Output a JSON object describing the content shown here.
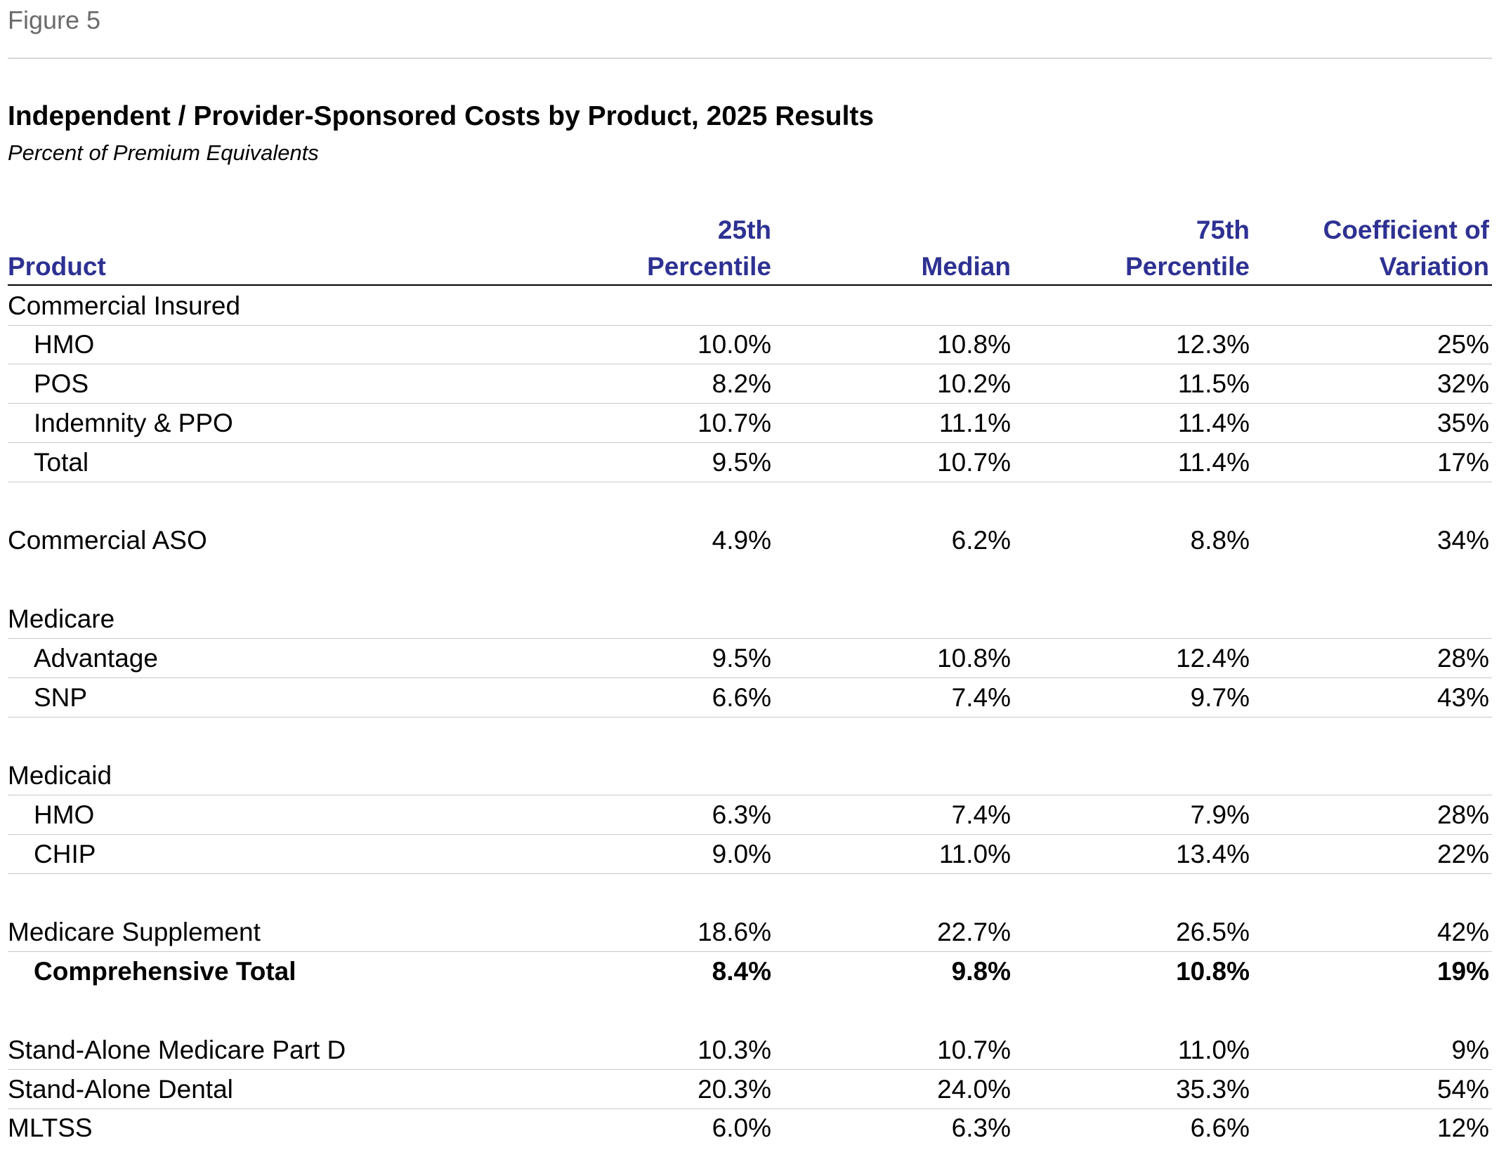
{
  "header": {
    "figure": "Figure 5",
    "title": "Independent / Provider-Sponsored Costs by Product, 2025 Results",
    "subtitle": "Percent of Premium Equivalents"
  },
  "table": {
    "columns": [
      [
        "Product"
      ],
      [
        "25th",
        "Percentile"
      ],
      [
        "Median"
      ],
      [
        "75th",
        "Percentile"
      ],
      [
        "Coefficient of",
        "Variation"
      ]
    ],
    "groups": [
      [
        {
          "label": "Commercial Insured",
          "rule": true
        },
        {
          "label": "HMO",
          "values": [
            "10.0%",
            "10.8%",
            "12.3%",
            "25%"
          ],
          "indent": true,
          "rule": true
        },
        {
          "label": "POS",
          "values": [
            "8.2%",
            "10.2%",
            "11.5%",
            "32%"
          ],
          "indent": true,
          "rule": true
        },
        {
          "label": "Indemnity & PPO",
          "values": [
            "10.7%",
            "11.1%",
            "11.4%",
            "35%"
          ],
          "indent": true,
          "rule": true
        },
        {
          "label": "Total",
          "values": [
            "9.5%",
            "10.7%",
            "11.4%",
            "17%"
          ],
          "indent": true,
          "rule": true
        }
      ],
      [
        {
          "label": "Commercial ASO",
          "values": [
            "4.9%",
            "6.2%",
            "8.8%",
            "34%"
          ]
        }
      ],
      [
        {
          "label": "Medicare",
          "rule": true
        },
        {
          "label": "Advantage",
          "values": [
            "9.5%",
            "10.8%",
            "12.4%",
            "28%"
          ],
          "indent": true,
          "rule": true
        },
        {
          "label": "SNP",
          "values": [
            "6.6%",
            "7.4%",
            "9.7%",
            "43%"
          ],
          "indent": true,
          "rule": true
        }
      ],
      [
        {
          "label": "Medicaid",
          "rule": true
        },
        {
          "label": "HMO",
          "values": [
            "6.3%",
            "7.4%",
            "7.9%",
            "28%"
          ],
          "indent": true,
          "rule": true
        },
        {
          "label": "CHIP",
          "values": [
            "9.0%",
            "11.0%",
            "13.4%",
            "22%"
          ],
          "indent": true,
          "rule": true
        }
      ],
      [
        {
          "label": "Medicare Supplement",
          "values": [
            "18.6%",
            "22.7%",
            "26.5%",
            "42%"
          ],
          "rule": true
        },
        {
          "label": "Comprehensive Total",
          "values": [
            "8.4%",
            "9.8%",
            "10.8%",
            "19%"
          ],
          "indent": true,
          "bold": true
        }
      ],
      [
        {
          "label": "Stand-Alone Medicare Part D",
          "values": [
            "10.3%",
            "10.7%",
            "11.0%",
            "9%"
          ],
          "rule": true
        },
        {
          "label": "Stand-Alone Dental",
          "values": [
            "20.3%",
            "24.0%",
            "35.3%",
            "54%"
          ],
          "rule": true
        },
        {
          "label": "MLTSS",
          "values": [
            "6.0%",
            "6.3%",
            "6.6%",
            "12%"
          ]
        }
      ]
    ]
  }
}
